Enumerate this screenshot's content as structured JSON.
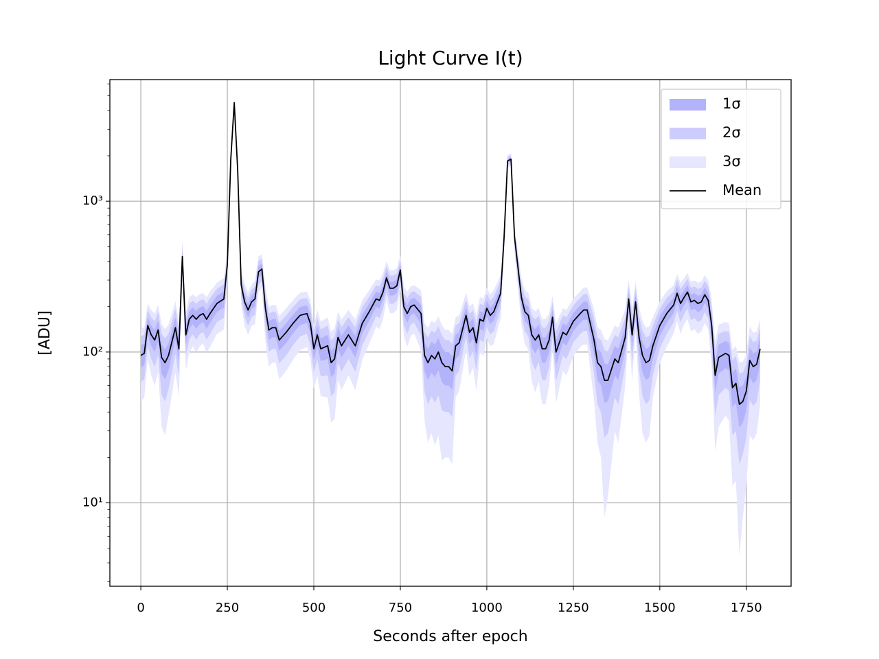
{
  "chart_data": {
    "type": "line",
    "title": "Light Curve I(t)",
    "x_label": "Seconds after epoch",
    "y_label": "[ADU]",
    "x": [
      0,
      10,
      20,
      30,
      40,
      50,
      60,
      70,
      80,
      100,
      110,
      120,
      130,
      140,
      150,
      160,
      170,
      180,
      190,
      200,
      220,
      240,
      250,
      260,
      270,
      280,
      290,
      300,
      310,
      320,
      330,
      340,
      350,
      360,
      370,
      380,
      390,
      400,
      420,
      440,
      460,
      480,
      490,
      500,
      510,
      520,
      540,
      550,
      560,
      570,
      580,
      600,
      620,
      640,
      660,
      680,
      690,
      700,
      710,
      720,
      730,
      740,
      750,
      760,
      770,
      780,
      790,
      810,
      820,
      830,
      840,
      850,
      860,
      870,
      880,
      890,
      900,
      910,
      920,
      940,
      950,
      960,
      970,
      980,
      990,
      1000,
      1010,
      1020,
      1040,
      1050,
      1060,
      1070,
      1080,
      1100,
      1110,
      1120,
      1130,
      1140,
      1150,
      1160,
      1170,
      1180,
      1190,
      1200,
      1220,
      1230,
      1250,
      1270,
      1280,
      1290,
      1310,
      1320,
      1330,
      1340,
      1350,
      1370,
      1380,
      1400,
      1410,
      1420,
      1430,
      1440,
      1450,
      1460,
      1470,
      1480,
      1500,
      1520,
      1540,
      1550,
      1560,
      1570,
      1580,
      1590,
      1600,
      1610,
      1620,
      1630,
      1640,
      1650,
      1660,
      1670,
      1690,
      1700,
      1710,
      1720,
      1730,
      1740,
      1750,
      1760,
      1770,
      1780,
      1790
    ],
    "series": [
      {
        "name": "Mean",
        "color": "#000000",
        "values": [
          95,
          98,
          150,
          130,
          120,
          140,
          92,
          85,
          95,
          145,
          105,
          430,
          130,
          165,
          175,
          165,
          175,
          180,
          165,
          180,
          210,
          225,
          380,
          1900,
          4500,
          1600,
          280,
          215,
          190,
          215,
          225,
          340,
          355,
          195,
          140,
          145,
          145,
          120,
          135,
          155,
          175,
          180,
          155,
          105,
          130,
          105,
          110,
          85,
          90,
          125,
          110,
          130,
          110,
          155,
          185,
          225,
          220,
          250,
          310,
          265,
          265,
          275,
          350,
          200,
          180,
          200,
          205,
          180,
          95,
          85,
          95,
          90,
          100,
          85,
          80,
          80,
          75,
          110,
          115,
          175,
          135,
          145,
          115,
          165,
          160,
          195,
          175,
          185,
          245,
          580,
          1850,
          1900,
          580,
          230,
          185,
          175,
          130,
          120,
          130,
          105,
          105,
          120,
          170,
          100,
          135,
          130,
          160,
          180,
          190,
          190,
          120,
          85,
          80,
          65,
          65,
          90,
          85,
          125,
          225,
          130,
          215,
          125,
          95,
          85,
          88,
          110,
          150,
          180,
          205,
          245,
          210,
          230,
          250,
          215,
          220,
          210,
          215,
          240,
          220,
          150,
          70,
          92,
          98,
          95,
          58,
          62,
          45,
          47,
          55,
          88,
          80,
          83,
          105
        ]
      }
    ],
    "sigma": [
      16,
      16,
      20,
      20,
      20,
      22,
      20,
      19,
      19,
      24,
      18,
      40,
      18,
      22,
      22,
      22,
      22,
      22,
      22,
      24,
      26,
      28,
      30,
      80,
      120,
      80,
      25,
      22,
      20,
      22,
      24,
      30,
      30,
      26,
      20,
      20,
      20,
      18,
      20,
      22,
      24,
      24,
      22,
      16,
      20,
      18,
      20,
      17,
      18,
      20,
      18,
      20,
      18,
      22,
      24,
      26,
      26,
      28,
      30,
      28,
      28,
      28,
      30,
      24,
      24,
      24,
      24,
      26,
      20,
      20,
      22,
      22,
      24,
      22,
      20,
      20,
      19,
      20,
      20,
      24,
      22,
      22,
      20,
      22,
      22,
      24,
      22,
      24,
      26,
      40,
      60,
      60,
      40,
      26,
      24,
      24,
      22,
      22,
      22,
      20,
      20,
      20,
      22,
      18,
      20,
      20,
      22,
      24,
      26,
      26,
      24,
      20,
      20,
      19,
      18,
      20,
      20,
      22,
      26,
      22,
      26,
      24,
      22,
      20,
      20,
      20,
      22,
      24,
      24,
      28,
      26,
      26,
      28,
      26,
      26,
      26,
      26,
      28,
      26,
      24,
      16,
      20,
      20,
      20,
      15,
      16,
      13.5,
      13,
      14,
      20,
      18,
      18,
      20
    ],
    "bands": [
      {
        "name": "1σ",
        "multiple": 1,
        "color": "#b3b3fc"
      },
      {
        "name": "2σ",
        "multiple": 2,
        "color": "#ccccfd"
      },
      {
        "name": "3σ",
        "multiple": 3,
        "color": "#e6e6fe"
      }
    ],
    "xlim": [
      -89.5,
      1879.5
    ],
    "xticks": [
      0,
      250,
      500,
      750,
      1000,
      1250,
      1500,
      1750
    ],
    "ylim": [
      2.8,
      6400
    ],
    "log_y": true,
    "yticks": [
      {
        "value": 10,
        "label": "10¹"
      },
      {
        "value": 100,
        "label": "10²"
      },
      {
        "value": 1000,
        "label": "10³"
      }
    ],
    "yminorticks": [
      3,
      4,
      5,
      6,
      7,
      8,
      9,
      20,
      30,
      40,
      50,
      60,
      70,
      80,
      90,
      200,
      300,
      400,
      500,
      600,
      700,
      800,
      900,
      2000,
      3000,
      4000,
      5000,
      6000
    ],
    "grid": true,
    "legend": "upper right"
  }
}
